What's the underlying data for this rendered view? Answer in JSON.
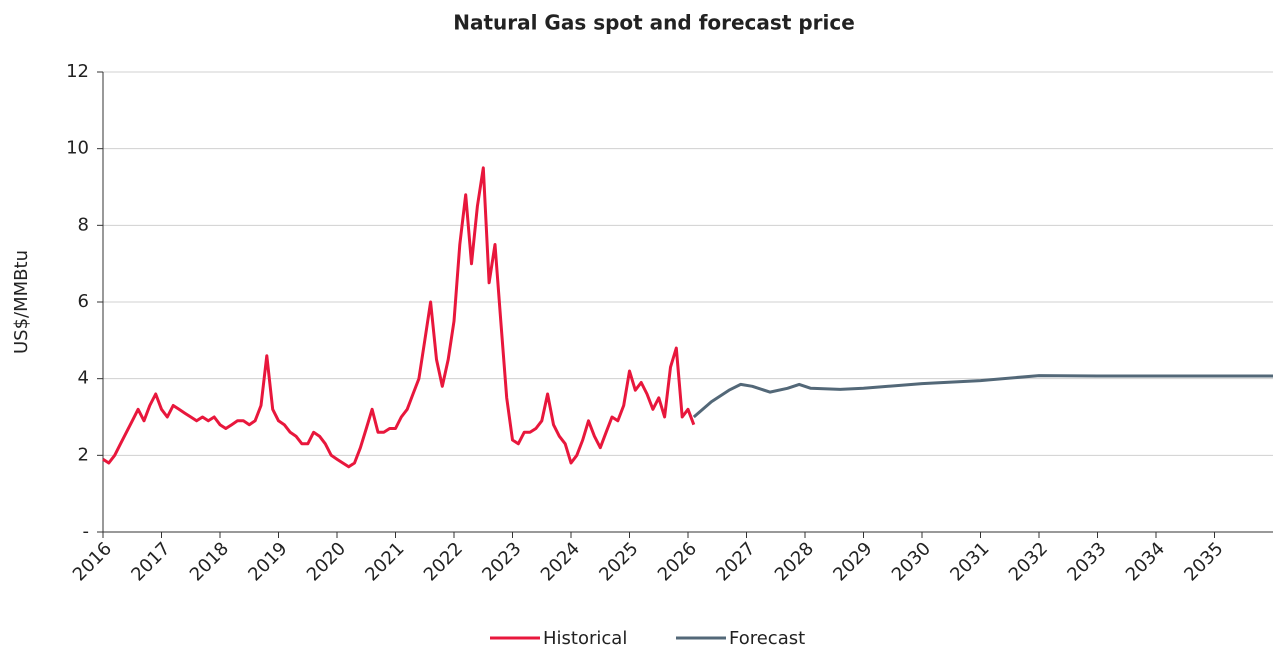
{
  "chart_data": {
    "type": "line",
    "title": "Natural Gas spot and forecast price",
    "ylabel": "US$/MMBtu",
    "xlim": [
      2016,
      2036
    ],
    "xticks": [
      2016,
      2017,
      2018,
      2019,
      2020,
      2021,
      2022,
      2023,
      2024,
      2025,
      2026,
      2027,
      2028,
      2029,
      2030,
      2031,
      2032,
      2033,
      2034,
      2035
    ],
    "ylim": [
      0,
      12
    ],
    "yticks": [
      {
        "value": 0,
        "label": "-"
      },
      2,
      4,
      6,
      8,
      10,
      12
    ],
    "grid": true,
    "legend": "bottom",
    "series": [
      {
        "name": "Historical",
        "color": "#e8173c",
        "x": [
          2016.0,
          2016.1,
          2016.2,
          2016.3,
          2016.4,
          2016.5,
          2016.6,
          2016.7,
          2016.8,
          2016.9,
          2017.0,
          2017.1,
          2017.2,
          2017.3,
          2017.4,
          2017.5,
          2017.6,
          2017.7,
          2017.8,
          2017.9,
          2018.0,
          2018.1,
          2018.2,
          2018.3,
          2018.4,
          2018.5,
          2018.6,
          2018.7,
          2018.8,
          2018.9,
          2019.0,
          2019.1,
          2019.2,
          2019.3,
          2019.4,
          2019.5,
          2019.6,
          2019.7,
          2019.8,
          2019.9,
          2020.0,
          2020.1,
          2020.2,
          2020.3,
          2020.4,
          2020.5,
          2020.6,
          2020.7,
          2020.8,
          2020.9,
          2021.0,
          2021.1,
          2021.2,
          2021.3,
          2021.4,
          2021.5,
          2021.6,
          2021.7,
          2021.8,
          2021.9,
          2022.0,
          2022.1,
          2022.2,
          2022.3,
          2022.4,
          2022.5,
          2022.6,
          2022.7,
          2022.8,
          2022.9,
          2023.0,
          2023.1,
          2023.2,
          2023.3,
          2023.4,
          2023.5,
          2023.6,
          2023.7,
          2023.8,
          2023.9,
          2024.0,
          2024.1,
          2024.2,
          2024.3,
          2024.4,
          2024.5,
          2024.6,
          2024.7,
          2024.8,
          2024.9,
          2025.0,
          2025.1,
          2025.2,
          2025.3,
          2025.4,
          2025.5,
          2025.6,
          2025.7,
          2025.8,
          2025.9,
          2026.0,
          2026.1
        ],
        "values": [
          1.9,
          1.8,
          2.0,
          2.3,
          2.6,
          2.9,
          3.2,
          2.9,
          3.3,
          3.6,
          3.2,
          3.0,
          3.3,
          3.2,
          3.1,
          3.0,
          2.9,
          3.0,
          2.9,
          3.0,
          2.8,
          2.7,
          2.8,
          2.9,
          2.9,
          2.8,
          2.9,
          3.3,
          4.6,
          3.2,
          2.9,
          2.8,
          2.6,
          2.5,
          2.3,
          2.3,
          2.6,
          2.5,
          2.3,
          2.0,
          1.9,
          1.8,
          1.7,
          1.8,
          2.2,
          2.7,
          3.2,
          2.6,
          2.6,
          2.7,
          2.7,
          3.0,
          3.2,
          3.6,
          4.0,
          5.0,
          6.0,
          4.5,
          3.8,
          4.5,
          5.5,
          7.5,
          8.8,
          7.0,
          8.5,
          9.5,
          6.5,
          7.5,
          5.5,
          3.5,
          2.4,
          2.3,
          2.6,
          2.6,
          2.7,
          2.9,
          3.6,
          2.8,
          2.5,
          2.3,
          1.8,
          2.0,
          2.4,
          2.9,
          2.5,
          2.2,
          2.6,
          3.0,
          2.9,
          3.3,
          4.2,
          3.7,
          3.9,
          3.6,
          3.2,
          3.5,
          3.0,
          4.3,
          4.8,
          3.0,
          3.2,
          2.8
        ]
      },
      {
        "name": "Forecast",
        "color": "#536878",
        "x": [
          2026.1,
          2026.4,
          2026.7,
          2026.9,
          2027.1,
          2027.4,
          2027.7,
          2027.9,
          2028.1,
          2028.6,
          2029,
          2030,
          2031,
          2032,
          2033,
          2034,
          2035,
          2036
        ],
        "values": [
          3.0,
          3.4,
          3.7,
          3.85,
          3.8,
          3.65,
          3.75,
          3.85,
          3.75,
          3.72,
          3.75,
          3.87,
          3.95,
          4.08,
          4.07,
          4.07,
          4.07,
          4.07
        ]
      }
    ]
  }
}
